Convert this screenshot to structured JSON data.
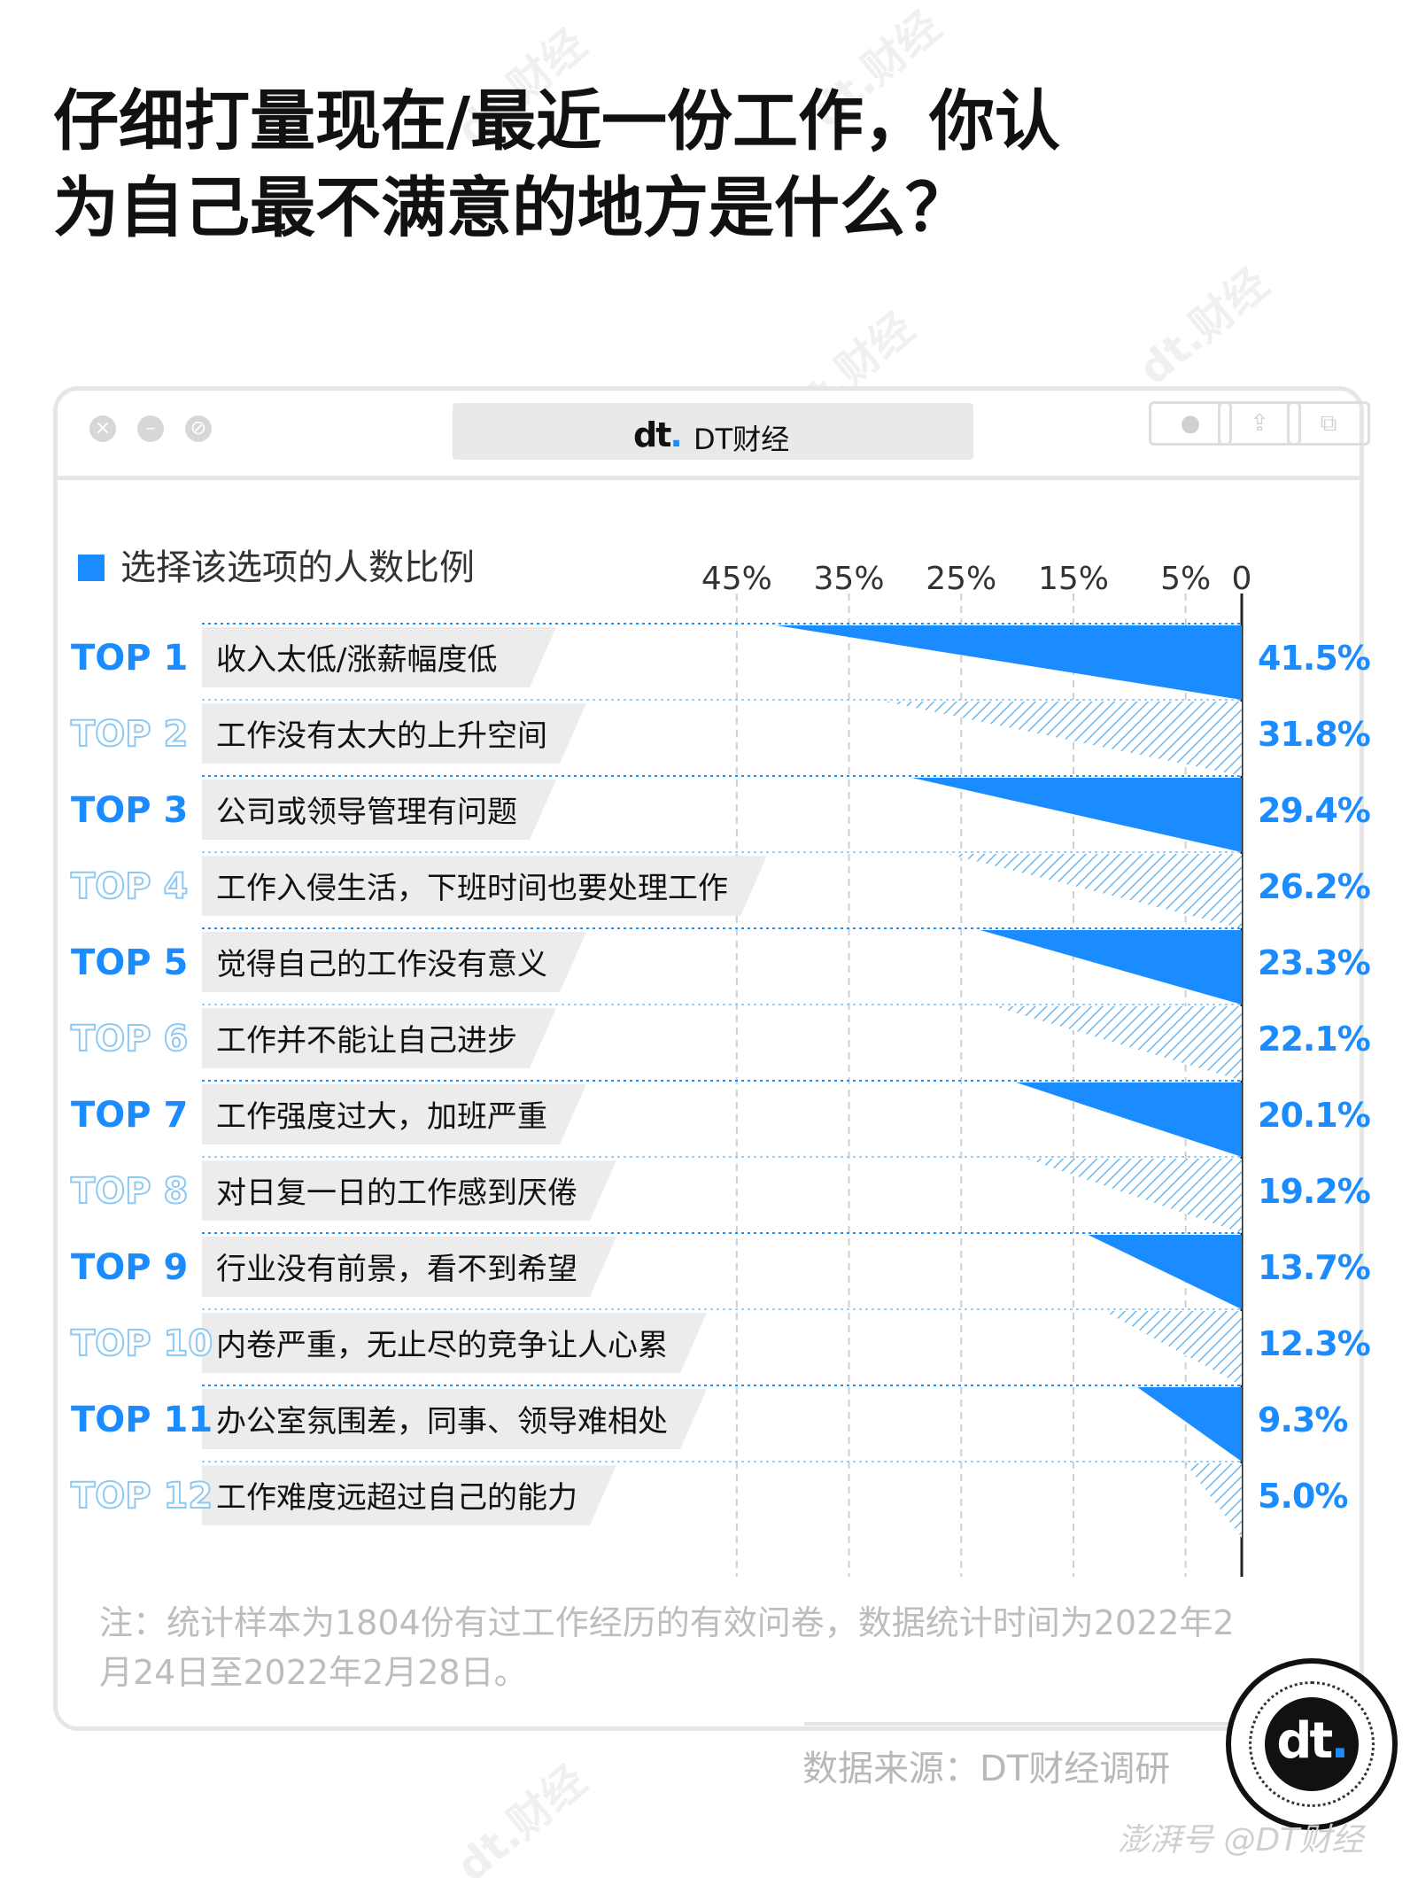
{
  "title": "仔细打量现在/最近一份工作，你认为自己最不满意的地方是什么？",
  "window": {
    "tab_logo": "dt",
    "tab_label": "DT财经"
  },
  "legend": "选择该选项的人数比例",
  "note": "注：统计样本为1804份有过工作经历的有效问卷，数据统计时间为2022年2月24日至2022年2月28日。",
  "source": "数据来源：DT财经调研",
  "badge_logo": "dt",
  "footer": "澎湃号 @DT财经",
  "watermark_text": "dt.财经",
  "colors": {
    "accent": "#1a8cff",
    "rank_light": "#8fc9f2"
  },
  "chart_data": {
    "type": "bar",
    "orientation": "horizontal-right-aligned",
    "categories": [
      "收入太低/涨薪幅度低",
      "工作没有太大的上升空间",
      "公司或领导管理有问题",
      "工作入侵生活，下班时间也要处理工作",
      "觉得自己的工作没有意义",
      "工作并不能让自己进步",
      "工作强度过大，加班严重",
      "对日复一日的工作感到厌倦",
      "行业没有前景，看不到希望",
      "内卷严重，无止尽的竞争让人心累",
      "办公室氛围差，同事、领导难相处",
      "工作难度远超过自己的能力"
    ],
    "ranks": [
      "TOP 1",
      "TOP 2",
      "TOP 3",
      "TOP 4",
      "TOP 5",
      "TOP 6",
      "TOP 7",
      "TOP 8",
      "TOP 9",
      "TOP 10",
      "TOP 11",
      "TOP 12"
    ],
    "values": [
      41.5,
      31.8,
      29.4,
      26.2,
      23.3,
      22.1,
      20.1,
      19.2,
      13.7,
      12.3,
      9.3,
      5.0
    ],
    "value_labels": [
      "41.5%",
      "31.8%",
      "29.4%",
      "26.2%",
      "23.3%",
      "22.1%",
      "20.1%",
      "19.2%",
      "13.7%",
      "12.3%",
      "9.3%",
      "5.0%"
    ],
    "ticks": [
      45,
      35,
      25,
      15,
      5,
      0
    ],
    "tick_labels": [
      "45%",
      "35%",
      "25%",
      "15%",
      "5%",
      "0"
    ],
    "xlim": [
      0,
      45
    ],
    "axis_direction": "reversed",
    "grid": true
  }
}
